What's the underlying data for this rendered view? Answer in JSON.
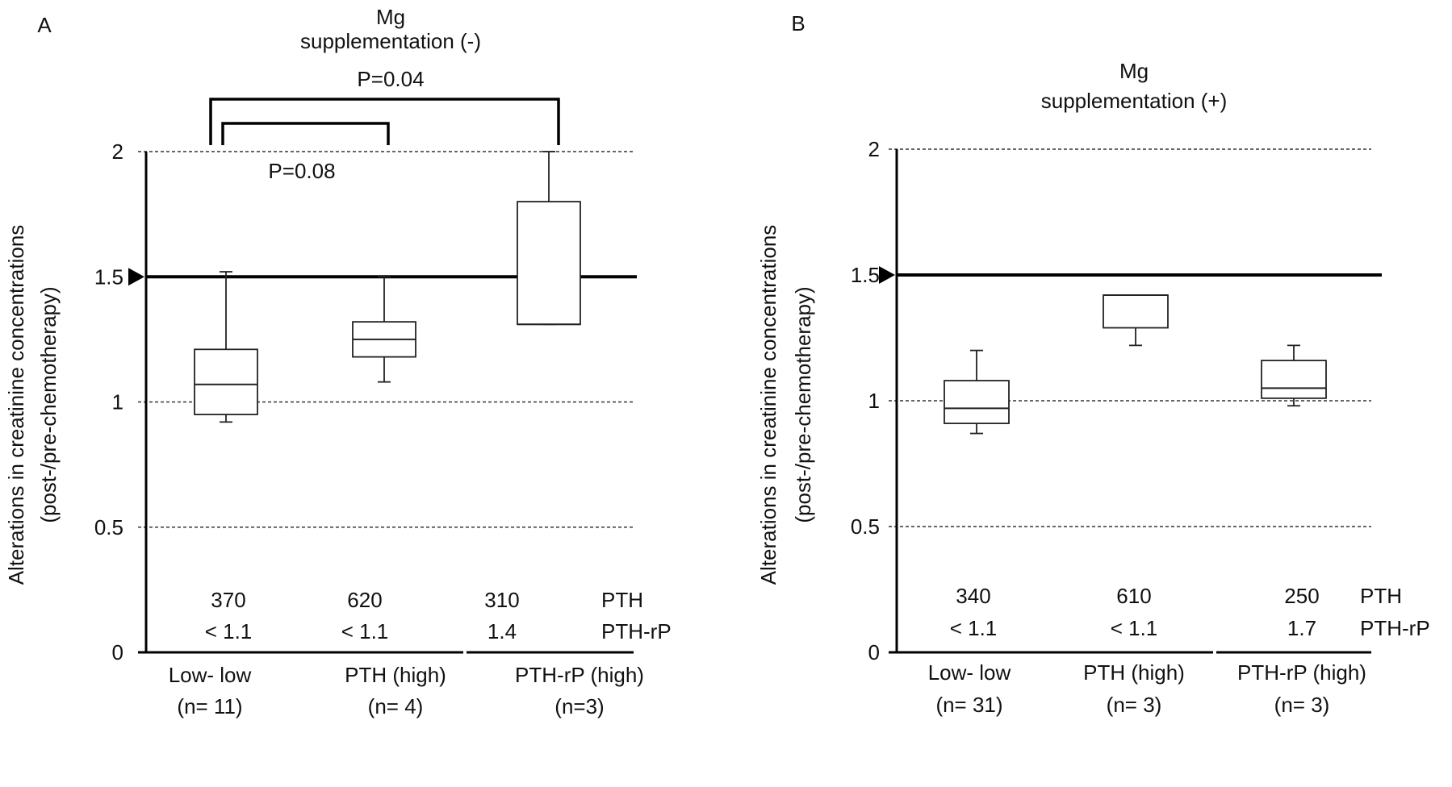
{
  "chart_data": [
    {
      "type": "box",
      "panel_label": "A",
      "title_lines": [
        "Mg",
        "supplementation (-)"
      ],
      "ylabel_lines": [
        "Alterations in creatinine concentrations",
        "(post-/pre-chemotherapy)"
      ],
      "ylim": [
        0,
        2
      ],
      "yticks": [
        "0",
        "0.5",
        "1",
        "1.5",
        "2"
      ],
      "reference_line": 1.5,
      "grid": "dashed at 0.5, 1, 2",
      "categories": [
        "Low- low",
        "PTH (high)",
        "PTH-rP (high)"
      ],
      "n_labels": [
        "(n= 11)",
        "(n= 4)",
        "(n=3)"
      ],
      "boxes": [
        {
          "min": 0.92,
          "q1": 0.95,
          "median": 1.07,
          "q3": 1.21,
          "max": 1.52
        },
        {
          "min": 1.08,
          "q1": 1.18,
          "median": 1.25,
          "q3": 1.32,
          "max": 1.5
        },
        {
          "min": 1.31,
          "q1": 1.31,
          "median": 1.31,
          "q3": 1.8,
          "max": 2.0
        }
      ],
      "row_labels": [
        "PTH",
        "PTH-rP"
      ],
      "pth_values": [
        "370",
        "620",
        "310"
      ],
      "pthrp_values": [
        "< 1.1",
        "< 1.1",
        "1.4"
      ],
      "comparisons": [
        {
          "from": 0,
          "to": 2,
          "label": "P=0.04"
        },
        {
          "from": 0,
          "to": 1,
          "label": "P=0.08"
        }
      ]
    },
    {
      "type": "box",
      "panel_label": "B",
      "title_lines": [
        "Mg",
        "supplementation (+)"
      ],
      "ylabel_lines": [
        "Alterations in creatinine concentrations",
        "(post-/pre-chemotherapy)"
      ],
      "ylim": [
        0,
        2
      ],
      "yticks": [
        "0",
        "0.5",
        "1",
        "1.5",
        "2"
      ],
      "reference_line": 1.5,
      "grid": "dashed at 0.5, 1, 2",
      "categories": [
        "Low- low",
        "PTH (high)",
        "PTH-rP (high)"
      ],
      "n_labels": [
        "(n= 31)",
        "(n= 3)",
        "(n= 3)"
      ],
      "boxes": [
        {
          "min": 0.87,
          "q1": 0.91,
          "median": 0.97,
          "q3": 1.08,
          "max": 1.2
        },
        {
          "min": 1.22,
          "q1": 1.29,
          "median": 1.42,
          "q3": 1.42,
          "max": 1.42
        },
        {
          "min": 0.98,
          "q1": 1.01,
          "median": 1.05,
          "q3": 1.16,
          "max": 1.22
        }
      ],
      "row_labels": [
        "PTH",
        "PTH-rP"
      ],
      "pth_values": [
        "340",
        "610",
        "250"
      ],
      "pthrp_values": [
        "< 1.1",
        "< 1.1",
        "1.7"
      ],
      "comparisons": []
    }
  ]
}
